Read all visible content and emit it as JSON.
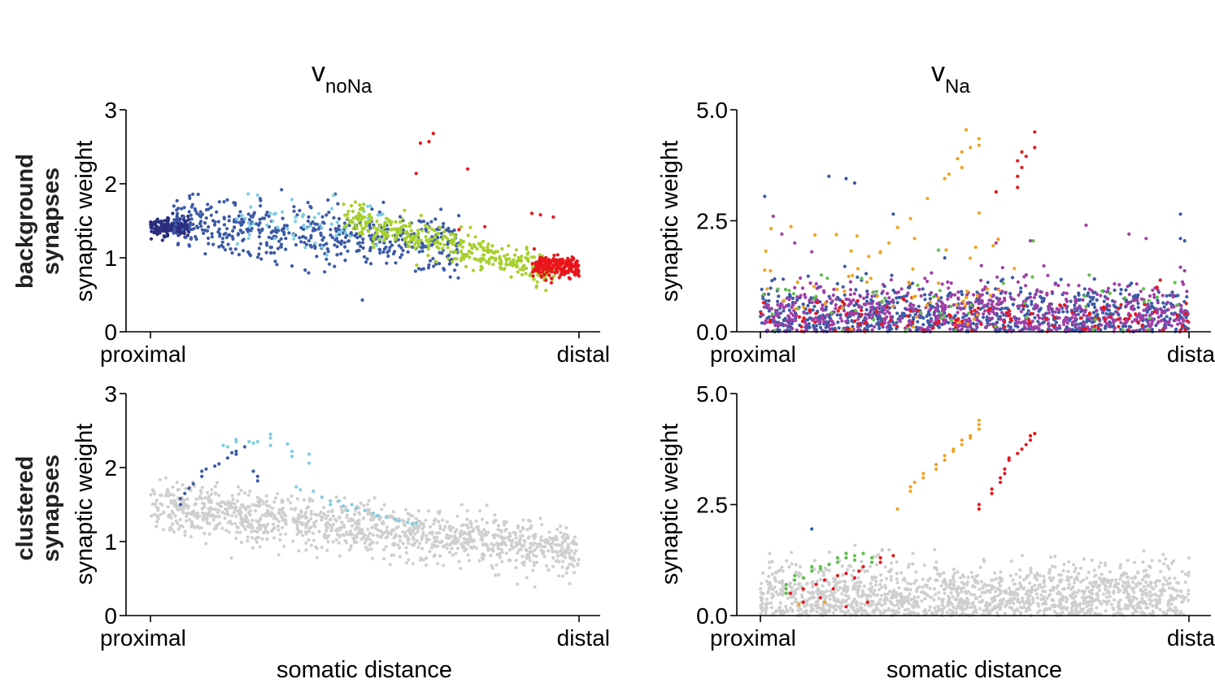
{
  "figure": {
    "column_titles": [
      {
        "base": "v",
        "sub": "noNa"
      },
      {
        "base": "v",
        "sub": "Na"
      }
    ],
    "row_labels": [
      [
        "background",
        "synapses"
      ],
      [
        "clustered",
        "synapses"
      ]
    ],
    "x_axis_label": "somatic distance",
    "y_axis_label": "synaptic weight",
    "x_tick_labels_left": [
      "proximal",
      "distal"
    ],
    "x_tick_labels_right": [
      "proximal",
      "dista"
    ],
    "colors": {
      "navy": "#2b2f7e",
      "blue": "#3c5aa6",
      "sky": "#7fcde3",
      "lime": "#a6d02c",
      "red": "#e8161b",
      "orange": "#f2a21f",
      "purple": "#a23ea6",
      "green": "#5fbf4a",
      "grey": "#cfcfcf"
    }
  },
  "chart_data": [
    {
      "id": "top-left",
      "type": "scatter",
      "title": "vnoNa",
      "row": "background synapses",
      "xlabel": "",
      "ylabel": "synaptic weight",
      "xlim": [
        0,
        1
      ],
      "ylim": [
        0,
        3
      ],
      "yticks": [
        0,
        1,
        2,
        3
      ],
      "ytick_labels": [
        "0",
        "1",
        "2",
        "3"
      ],
      "xtick_labels": [
        "proximal",
        "distal"
      ],
      "series": [
        {
          "name": "cluster navy",
          "color": "#2b2f7e",
          "x_range": [
            0.0,
            0.09
          ],
          "y_mean": 1.42,
          "y_spread": 0.06,
          "n": 180
        },
        {
          "name": "cluster blue",
          "color": "#3c5aa6",
          "x_range": [
            0.05,
            0.72
          ],
          "y_start": 1.5,
          "y_end": 1.15,
          "y_spread": 0.2,
          "n": 520
        },
        {
          "name": "cluster sky",
          "color": "#7fcde3",
          "x_range": [
            0.2,
            0.55
          ],
          "y_start": 1.5,
          "y_end": 1.45,
          "y_spread": 0.18,
          "n": 60
        },
        {
          "name": "cluster lime",
          "color": "#a6d02c",
          "x_range": [
            0.45,
            0.95
          ],
          "y_start": 1.55,
          "y_end": 0.78,
          "y_spread": 0.1,
          "n": 380
        },
        {
          "name": "cluster red",
          "color": "#e8161b",
          "x_range": [
            0.89,
            1.0
          ],
          "y_mean": 0.88,
          "y_spread": 0.07,
          "n": 220
        },
        {
          "name": "outliers red",
          "color": "#e8161b",
          "points": [
            [
              0.66,
              2.68
            ],
            [
              0.65,
              2.57
            ],
            [
              0.63,
              2.55
            ],
            [
              0.74,
              2.2
            ],
            [
              0.62,
              2.14
            ],
            [
              0.89,
              1.6
            ],
            [
              0.94,
              1.55
            ],
            [
              0.91,
              1.58
            ],
            [
              0.78,
              1.42
            ],
            [
              0.72,
              1.38
            ]
          ]
        }
      ]
    },
    {
      "id": "top-right",
      "type": "scatter",
      "title": "vNa",
      "row": "background synapses",
      "xlabel": "",
      "ylabel": "synaptic weight",
      "xlim": [
        0,
        1
      ],
      "ylim": [
        0,
        5
      ],
      "yticks": [
        0,
        2.5,
        5
      ],
      "ytick_labels": [
        "0.0",
        "2.5",
        "5.0"
      ],
      "xtick_labels": [
        "proximal",
        "dista"
      ],
      "series": [
        {
          "name": "background blue",
          "color": "#3c5aa6",
          "x_range": [
            0.0,
            1.0
          ],
          "y_mean": 0.35,
          "y_spread": 0.35,
          "n": 900
        },
        {
          "name": "background purple",
          "color": "#a23ea6",
          "x_range": [
            0.0,
            1.0
          ],
          "y_mean": 0.4,
          "y_spread": 0.38,
          "n": 650
        },
        {
          "name": "background red",
          "color": "#e8161b",
          "x_range": [
            0.0,
            1.0
          ],
          "y_mean": 0.35,
          "y_spread": 0.25,
          "n": 120
        },
        {
          "name": "background green",
          "color": "#5fbf4a",
          "x_range": [
            0.0,
            1.0
          ],
          "y_mean": 0.6,
          "y_spread": 0.4,
          "n": 60
        },
        {
          "name": "background orange",
          "color": "#f2a21f",
          "x_range": [
            0.0,
            0.6
          ],
          "y_mean": 1.0,
          "y_spread": 0.6,
          "n": 60
        },
        {
          "name": "high orange",
          "color": "#f2a21f",
          "points": [
            [
              0.48,
              4.55
            ],
            [
              0.51,
              4.35
            ],
            [
              0.51,
              4.2
            ],
            [
              0.49,
              4.15
            ],
            [
              0.47,
              4.05
            ],
            [
              0.46,
              3.9
            ],
            [
              0.47,
              3.7
            ],
            [
              0.44,
              3.55
            ],
            [
              0.43,
              3.45
            ],
            [
              0.39,
              3.0
            ],
            [
              0.35,
              2.55
            ],
            [
              0.32,
              2.35
            ],
            [
              0.36,
              2.1
            ],
            [
              0.3,
              2.0
            ],
            [
              0.28,
              1.8
            ]
          ]
        },
        {
          "name": "high red",
          "color": "#e8161b",
          "points": [
            [
              0.64,
              4.5
            ],
            [
              0.64,
              4.15
            ],
            [
              0.61,
              4.05
            ],
            [
              0.62,
              3.95
            ],
            [
              0.6,
              3.85
            ],
            [
              0.61,
              3.7
            ],
            [
              0.6,
              3.5
            ],
            [
              0.6,
              3.25
            ],
            [
              0.55,
              3.15
            ]
          ]
        },
        {
          "name": "high blue",
          "color": "#3c5aa6",
          "points": [
            [
              0.01,
              3.05
            ],
            [
              0.16,
              3.5
            ],
            [
              0.2,
              3.45
            ],
            [
              0.22,
              3.35
            ],
            [
              0.31,
              2.65
            ],
            [
              0.98,
              2.65
            ],
            [
              0.98,
              2.1
            ],
            [
              0.99,
              2.05
            ]
          ]
        },
        {
          "name": "high purple",
          "color": "#a23ea6",
          "points": [
            [
              0.03,
              2.6
            ],
            [
              0.05,
              2.2
            ],
            [
              0.08,
              2.0
            ],
            [
              0.55,
              2.0
            ],
            [
              0.63,
              2.05
            ],
            [
              0.76,
              2.4
            ],
            [
              0.86,
              2.2
            ],
            [
              0.9,
              2.1
            ],
            [
              0.12,
              1.8
            ]
          ]
        }
      ]
    },
    {
      "id": "bottom-left",
      "type": "scatter",
      "title": "",
      "row": "clustered synapses",
      "xlabel": "somatic distance",
      "ylabel": "synaptic weight",
      "xlim": [
        0,
        1
      ],
      "ylim": [
        0,
        3
      ],
      "yticks": [
        0,
        1,
        2,
        3
      ],
      "ytick_labels": [
        "0",
        "1",
        "2",
        "3"
      ],
      "xtick_labels": [
        "proximal",
        "distal"
      ],
      "series": [
        {
          "name": "background grey",
          "color": "#cfcfcf",
          "x_range": [
            0.0,
            1.0
          ],
          "y_start": 1.48,
          "y_end": 0.85,
          "y_spread": 0.17,
          "n": 1200
        },
        {
          "name": "clustered navy",
          "color": "#3c5aa6",
          "points": [
            [
              0.07,
              1.5
            ],
            [
              0.07,
              1.58
            ],
            [
              0.08,
              1.65
            ],
            [
              0.09,
              1.72
            ],
            [
              0.1,
              1.78
            ],
            [
              0.12,
              1.88
            ],
            [
              0.12,
              1.95
            ],
            [
              0.13,
              1.98
            ],
            [
              0.15,
              2.02
            ],
            [
              0.16,
              2.05
            ],
            [
              0.18,
              2.13
            ],
            [
              0.19,
              2.2
            ],
            [
              0.24,
              1.95
            ],
            [
              0.25,
              1.88
            ],
            [
              0.25,
              1.82
            ],
            [
              0.2,
              2.18
            ],
            [
              0.2,
              2.22
            ],
            [
              0.22,
              2.28
            ]
          ]
        },
        {
          "name": "clustered sky",
          "color": "#7fcde3",
          "points": [
            [
              0.17,
              2.3
            ],
            [
              0.18,
              2.28
            ],
            [
              0.2,
              2.35
            ],
            [
              0.2,
              2.38
            ],
            [
              0.23,
              2.35
            ],
            [
              0.24,
              2.33
            ],
            [
              0.25,
              2.35
            ],
            [
              0.28,
              2.4
            ],
            [
              0.28,
              2.45
            ],
            [
              0.28,
              2.3
            ],
            [
              0.32,
              2.32
            ],
            [
              0.33,
              2.22
            ],
            [
              0.33,
              2.15
            ],
            [
              0.37,
              2.18
            ],
            [
              0.37,
              2.06
            ],
            [
              0.34,
              1.74
            ],
            [
              0.35,
              1.7
            ],
            [
              0.38,
              1.68
            ],
            [
              0.4,
              1.6
            ],
            [
              0.42,
              1.55
            ],
            [
              0.42,
              1.5
            ],
            [
              0.45,
              1.48
            ],
            [
              0.46,
              1.42
            ],
            [
              0.48,
              1.45
            ],
            [
              0.5,
              1.42
            ],
            [
              0.52,
              1.38
            ],
            [
              0.53,
              1.35
            ],
            [
              0.55,
              1.33
            ],
            [
              0.57,
              1.3
            ],
            [
              0.58,
              1.28
            ],
            [
              0.6,
              1.26
            ],
            [
              0.61,
              1.24
            ],
            [
              0.62,
              1.25
            ],
            [
              0.47,
              1.5
            ],
            [
              0.44,
              1.55
            ]
          ]
        }
      ]
    },
    {
      "id": "bottom-right",
      "type": "scatter",
      "title": "",
      "row": "clustered synapses",
      "xlabel": "somatic distance",
      "ylabel": "synaptic weight",
      "xlim": [
        0,
        1
      ],
      "ylim": [
        0,
        5
      ],
      "yticks": [
        0,
        2.5,
        5
      ],
      "ytick_labels": [
        "0.0",
        "2.5",
        "5.0"
      ],
      "xtick_labels": [
        "proximal",
        "dista"
      ],
      "series": [
        {
          "name": "background grey",
          "color": "#cfcfcf",
          "x_range": [
            0.0,
            1.0
          ],
          "y_mean": 0.4,
          "y_spread": 0.4,
          "n": 1500
        },
        {
          "name": "clustered orange",
          "color": "#f2a21f",
          "points": [
            [
              0.35,
              2.8
            ],
            [
              0.35,
              2.9
            ],
            [
              0.36,
              3.0
            ],
            [
              0.38,
              3.1
            ],
            [
              0.38,
              3.2
            ],
            [
              0.41,
              3.3
            ],
            [
              0.41,
              3.4
            ],
            [
              0.43,
              3.5
            ],
            [
              0.43,
              3.6
            ],
            [
              0.45,
              3.7
            ],
            [
              0.45,
              3.75
            ],
            [
              0.47,
              3.85
            ],
            [
              0.47,
              3.95
            ],
            [
              0.49,
              4.0
            ],
            [
              0.49,
              4.05
            ],
            [
              0.51,
              4.2
            ],
            [
              0.51,
              4.3
            ],
            [
              0.51,
              4.4
            ],
            [
              0.32,
              2.4
            ],
            [
              0.15,
              0.3
            ],
            [
              0.09,
              0.25
            ]
          ]
        },
        {
          "name": "clustered red",
          "color": "#e8161b",
          "points": [
            [
              0.51,
              2.4
            ],
            [
              0.51,
              2.5
            ],
            [
              0.54,
              2.75
            ],
            [
              0.54,
              2.85
            ],
            [
              0.56,
              3.0
            ],
            [
              0.56,
              3.1
            ],
            [
              0.57,
              3.2
            ],
            [
              0.57,
              3.3
            ],
            [
              0.58,
              3.5
            ],
            [
              0.58,
              3.55
            ],
            [
              0.6,
              3.65
            ],
            [
              0.61,
              3.75
            ],
            [
              0.62,
              3.85
            ],
            [
              0.63,
              3.95
            ],
            [
              0.63,
              4.05
            ],
            [
              0.64,
              4.1
            ],
            [
              0.07,
              0.5
            ],
            [
              0.1,
              0.6
            ],
            [
              0.13,
              0.7
            ],
            [
              0.15,
              0.8
            ],
            [
              0.18,
              0.9
            ],
            [
              0.2,
              0.95
            ],
            [
              0.22,
              0.85
            ],
            [
              0.23,
              1.0
            ],
            [
              0.24,
              1.1
            ],
            [
              0.28,
              1.2
            ],
            [
              0.28,
              1.3
            ],
            [
              0.31,
              1.35
            ],
            [
              0.14,
              0.4
            ],
            [
              0.17,
              0.6
            ],
            [
              0.2,
              0.2
            ],
            [
              0.25,
              0.3
            ],
            [
              0.1,
              0.3
            ]
          ]
        },
        {
          "name": "clustered green",
          "color": "#5fbf4a",
          "points": [
            [
              0.06,
              0.6
            ],
            [
              0.06,
              0.7
            ],
            [
              0.06,
              0.5
            ],
            [
              0.08,
              0.8
            ],
            [
              0.08,
              0.9
            ],
            [
              0.12,
              1.0
            ],
            [
              0.12,
              1.1
            ],
            [
              0.14,
              1.05
            ],
            [
              0.14,
              1.1
            ],
            [
              0.16,
              1.15
            ],
            [
              0.18,
              1.2
            ],
            [
              0.18,
              1.3
            ],
            [
              0.2,
              1.3
            ],
            [
              0.2,
              1.4
            ],
            [
              0.22,
              1.25
            ],
            [
              0.22,
              1.35
            ],
            [
              0.24,
              1.4
            ],
            [
              0.26,
              1.3
            ],
            [
              0.26,
              1.2
            ],
            [
              0.1,
              0.85
            ]
          ]
        },
        {
          "name": "clustered blue",
          "color": "#2b5fb3",
          "points": [
            [
              0.12,
              1.95
            ]
          ]
        }
      ]
    }
  ]
}
